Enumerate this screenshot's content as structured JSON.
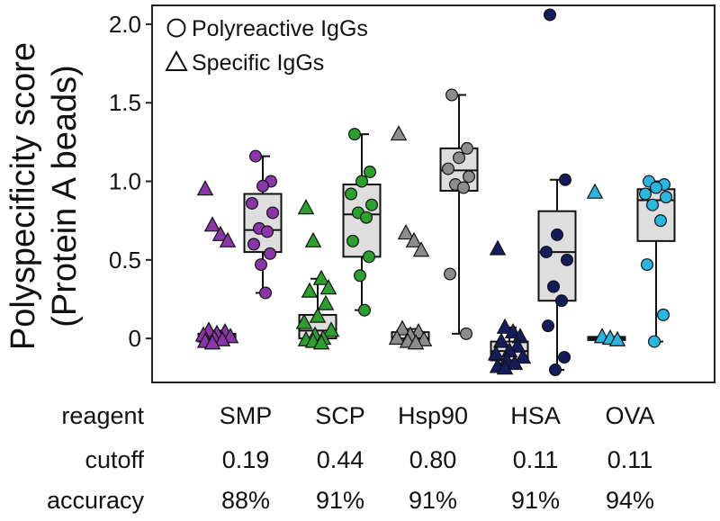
{
  "chart_data": {
    "type": "box",
    "ylabel_line1": "Polyspecificity score",
    "ylabel_line2": "(Protein A beads)",
    "ylim": [
      -0.28,
      2.12
    ],
    "yticks": [
      0,
      0.5,
      1.0,
      1.5,
      2.0
    ],
    "ytick_labels": [
      "0",
      "0.5",
      "1.0",
      "1.5",
      "2.0"
    ],
    "legend": {
      "position": "top-left",
      "items": [
        {
          "marker": "circle",
          "label": "Polyreactive IgGs"
        },
        {
          "marker": "triangle",
          "label": "Specific IgGs"
        }
      ]
    },
    "groups": [
      {
        "reagent": "SMP",
        "cutoff": "0.19",
        "accuracy": "88%",
        "color": "#8a35a8",
        "specific": {
          "box": {
            "min": -0.03,
            "q1": -0.02,
            "median": 0.0,
            "q3": 0.03,
            "max": 0.05
          },
          "points": [
            0.95,
            0.72,
            0.66,
            0.62,
            0.05,
            0.04,
            0.03,
            0.02,
            0.01,
            0.0,
            -0.01,
            -0.02,
            -0.03
          ]
        },
        "polyreactive": {
          "box": {
            "min": 0.29,
            "q1": 0.55,
            "median": 0.69,
            "q3": 0.92,
            "max": 1.16
          },
          "points": [
            1.16,
            1.0,
            0.97,
            0.86,
            0.8,
            0.7,
            0.68,
            0.6,
            0.54,
            0.47,
            0.29
          ]
        }
      },
      {
        "reagent": "SCP",
        "cutoff": "0.44",
        "accuracy": "91%",
        "color": "#2ca02c",
        "specific": {
          "box": {
            "min": -0.03,
            "q1": 0.0,
            "median": 0.05,
            "q3": 0.15,
            "max": 0.38
          },
          "points": [
            0.83,
            0.62,
            0.38,
            0.32,
            0.3,
            0.22,
            0.14,
            0.1,
            0.05,
            0.02,
            0.0,
            -0.01,
            -0.02,
            -0.03
          ]
        },
        "polyreactive": {
          "box": {
            "min": 0.18,
            "q1": 0.52,
            "median": 0.79,
            "q3": 0.98,
            "max": 1.3
          },
          "points": [
            1.3,
            1.06,
            1.0,
            0.92,
            0.85,
            0.8,
            0.77,
            0.62,
            0.52,
            0.4,
            0.18
          ]
        }
      },
      {
        "reagent": "Hsp90",
        "cutoff": "0.80",
        "accuracy": "91%",
        "color": "#8c8c8c",
        "specific": {
          "box": {
            "min": -0.03,
            "q1": -0.02,
            "median": 0.0,
            "q3": 0.04,
            "max": 0.06
          },
          "points": [
            1.3,
            0.67,
            0.62,
            0.56,
            0.06,
            0.04,
            0.02,
            0.0,
            -0.01,
            -0.02,
            -0.03
          ]
        },
        "polyreactive": {
          "box": {
            "min": 0.03,
            "q1": 0.94,
            "median": 1.07,
            "q3": 1.21,
            "max": 1.55
          },
          "points": [
            1.55,
            1.21,
            1.15,
            1.08,
            1.03,
            0.98,
            0.96,
            0.41,
            0.03
          ]
        }
      },
      {
        "reagent": "HSA",
        "cutoff": "0.11",
        "accuracy": "91%",
        "color": "#141c5e",
        "specific": {
          "box": {
            "min": -0.19,
            "q1": -0.14,
            "median": -0.08,
            "q3": -0.02,
            "max": 0.07
          },
          "points": [
            0.57,
            0.07,
            0.04,
            0.01,
            -0.02,
            -0.05,
            -0.08,
            -0.1,
            -0.12,
            -0.14,
            -0.16,
            -0.18,
            -0.19
          ]
        },
        "polyreactive": {
          "box": {
            "min": -0.2,
            "q1": 0.24,
            "median": 0.55,
            "q3": 0.81,
            "max": 1.01
          },
          "points": [
            2.06,
            1.01,
            0.66,
            0.55,
            0.5,
            0.33,
            0.24,
            0.08,
            -0.12,
            -0.2
          ]
        }
      },
      {
        "reagent": "OVA",
        "cutoff": "0.11",
        "accuracy": "94%",
        "color": "#29b6e0",
        "specific": {
          "box": {
            "min": -0.01,
            "q1": -0.01,
            "median": 0.0,
            "q3": 0.01,
            "max": 0.01
          },
          "points": [
            0.93,
            0.01,
            0.0,
            -0.01
          ]
        },
        "polyreactive": {
          "box": {
            "min": -0.02,
            "q1": 0.62,
            "median": 0.88,
            "q3": 0.95,
            "max": 1.0
          },
          "points": [
            1.0,
            0.98,
            0.96,
            0.92,
            0.9,
            0.85,
            0.75,
            0.47,
            0.15,
            -0.02
          ]
        }
      }
    ]
  },
  "table": {
    "row_labels": [
      "reagent",
      "cutoff",
      "accuracy"
    ]
  }
}
